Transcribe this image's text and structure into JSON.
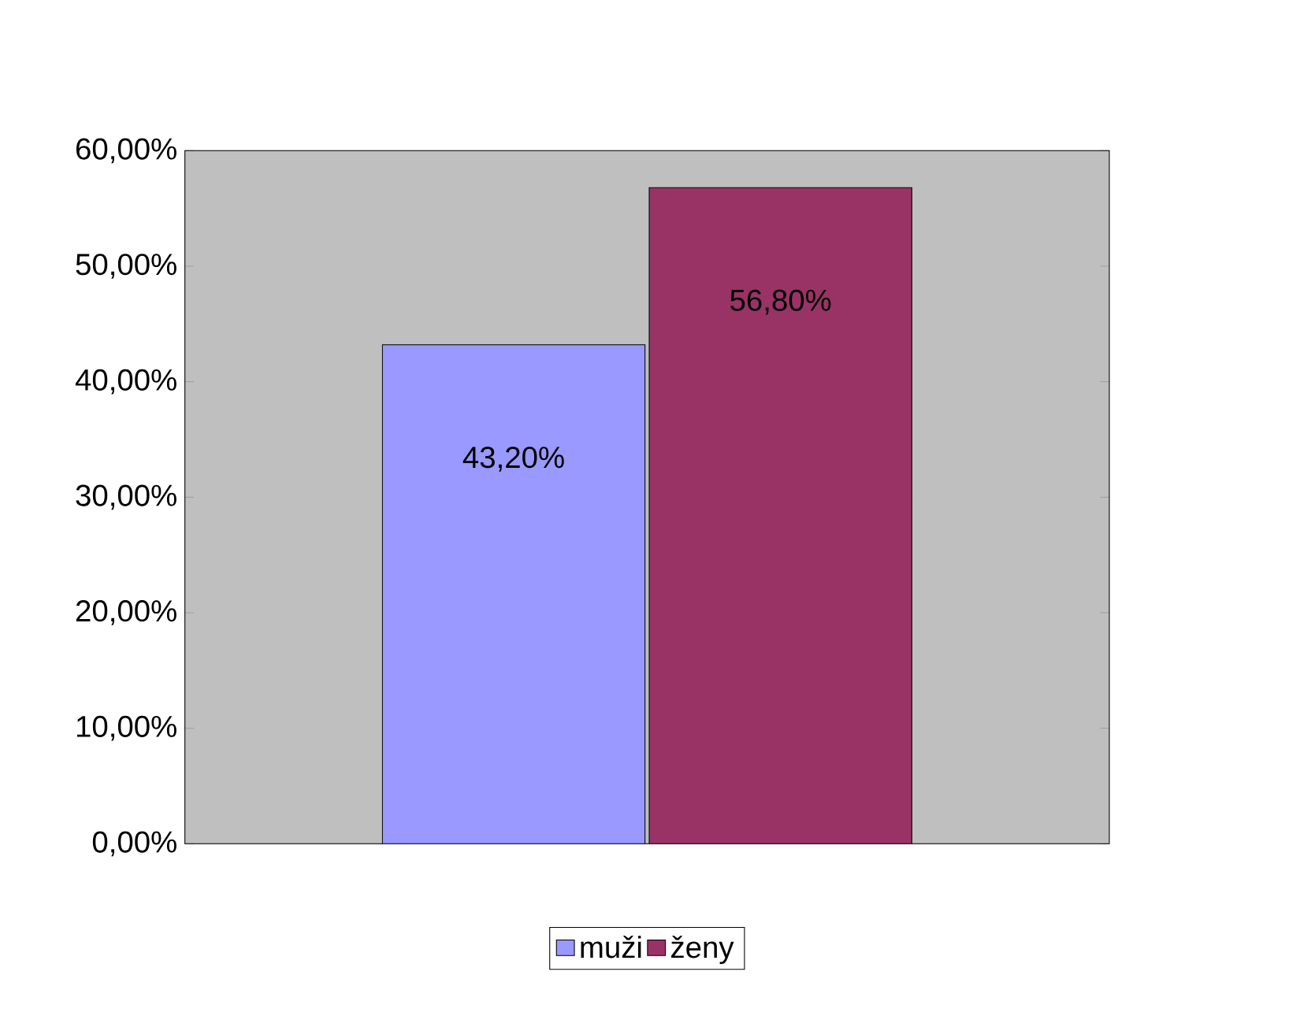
{
  "chart_data": {
    "type": "bar",
    "categories": [
      null
    ],
    "series": [
      {
        "name": "muži",
        "color": "#9999ff",
        "values": [
          43.2
        ],
        "value_labels": [
          "43,20%"
        ]
      },
      {
        "name": "ženy",
        "color": "#993366",
        "values": [
          56.8
        ],
        "value_labels": [
          "56,80%"
        ]
      }
    ],
    "ylim": [
      0,
      60
    ],
    "yticks": [
      {
        "value": 0,
        "label": "0,00%"
      },
      {
        "value": 10,
        "label": "10,00%"
      },
      {
        "value": 20,
        "label": "20,00%"
      },
      {
        "value": 30,
        "label": "30,00%"
      },
      {
        "value": 40,
        "label": "40,00%"
      },
      {
        "value": 50,
        "label": "50,00%"
      },
      {
        "value": 60,
        "label": "60,00%"
      }
    ],
    "grid": "y",
    "legend": "bottom"
  }
}
